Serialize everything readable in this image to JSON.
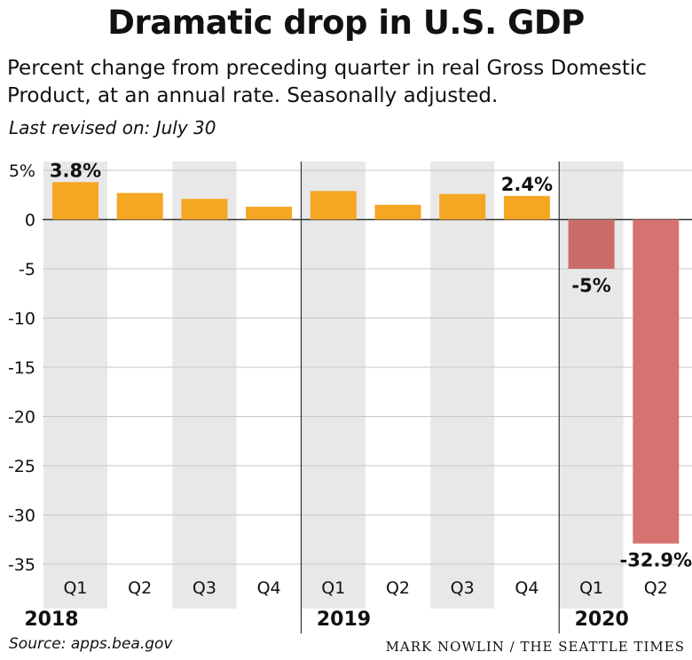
{
  "title": "Dramatic drop in U.S. GDP",
  "subtitle": "Percent change from preceding quarter in real Gross Domestic Product, at an annual rate. Seasonally adjusted.",
  "revised": "Last revised on: July 30",
  "source": "Source: apps.bea.gov",
  "credit": "MARK NOWLIN / THE SEATTLE TIMES",
  "colors": {
    "positive": "#f5a623",
    "negative": "#d4736f",
    "negative_q1": "#c96c6a",
    "band": "#e8e8e8",
    "grid": "#c8c8c8",
    "axis": "#333333"
  },
  "chart_data": {
    "type": "bar",
    "title": "Dramatic drop in U.S. GDP",
    "ylim": [
      -35,
      5
    ],
    "yticks": [
      5,
      0,
      -5,
      -10,
      -15,
      -20,
      -25,
      -30,
      -35
    ],
    "ytick_labels": [
      "5%",
      "0",
      "-5",
      "-10",
      "-15",
      "-20",
      "-25",
      "-30",
      "-35"
    ],
    "grid": true,
    "categories": [
      "Q1",
      "Q2",
      "Q3",
      "Q4",
      "Q1",
      "Q2",
      "Q3",
      "Q4",
      "Q1",
      "Q2"
    ],
    "years": [
      {
        "label": "2018",
        "count": 4
      },
      {
        "label": "2019",
        "count": 4
      },
      {
        "label": "2020",
        "count": 2
      }
    ],
    "values": [
      3.8,
      2.7,
      2.1,
      1.3,
      2.9,
      1.5,
      2.6,
      2.4,
      -5.0,
      -32.9
    ],
    "data_labels": [
      "3.8%",
      "",
      "",
      "",
      "",
      "",
      "",
      "2.4%",
      "-5%",
      "-32.9%"
    ]
  }
}
